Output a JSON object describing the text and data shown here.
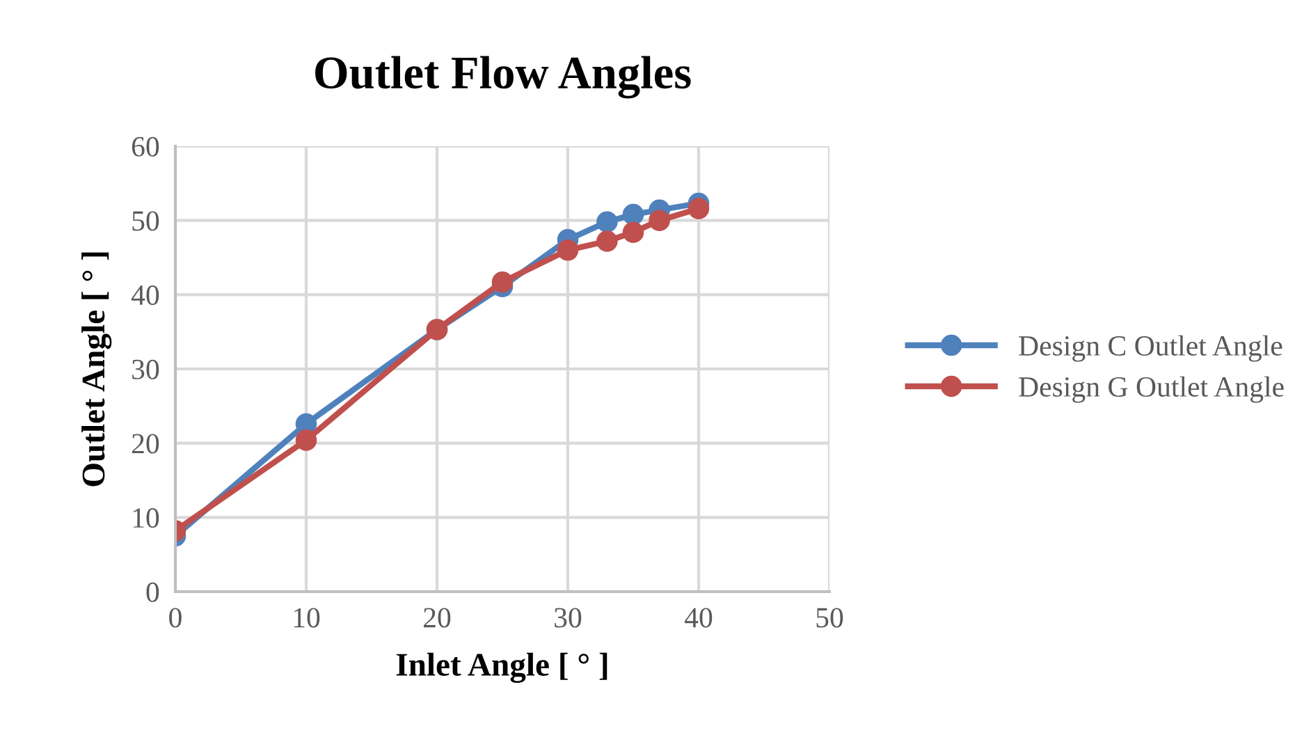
{
  "chart_data": {
    "type": "line",
    "title": "Outlet Flow Angles",
    "xlabel": "Inlet Angle [ ° ]",
    "ylabel": "Outlet Angle [ ° ]",
    "x": [
      0,
      10,
      20,
      25,
      30,
      33,
      35,
      37,
      40
    ],
    "series": [
      {
        "name": "Design C Outlet Angle",
        "color": "#4f81bd",
        "values": [
          7.5,
          22.6,
          35.3,
          41.1,
          47.4,
          49.8,
          50.8,
          51.4,
          52.3
        ]
      },
      {
        "name": "Design G Outlet Angle",
        "color": "#c0504d",
        "values": [
          8.2,
          20.4,
          35.3,
          41.7,
          46.0,
          47.2,
          48.4,
          50.0,
          51.6
        ]
      }
    ],
    "xlim": [
      0,
      50
    ],
    "xticks": [
      0,
      10,
      20,
      30,
      40,
      50
    ],
    "ylim": [
      0,
      60
    ],
    "yticks": [
      0,
      10,
      20,
      30,
      40,
      50,
      60
    ],
    "grid": true,
    "legend": "right",
    "marker": "circle",
    "line_style": "solid"
  }
}
